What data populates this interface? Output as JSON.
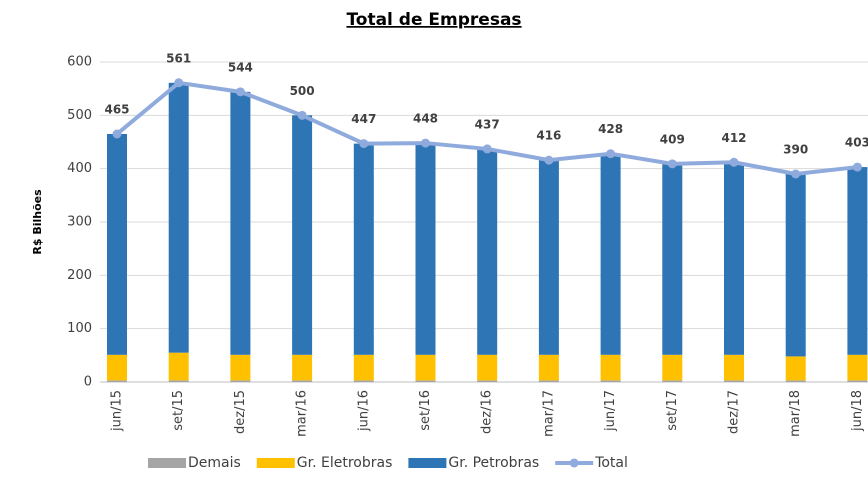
{
  "chart_data": {
    "type": "stacked-bar-line",
    "title": "Total de Empresas",
    "y_label": "R$ Bilhões",
    "categories": [
      "jun/15",
      "set/15",
      "dez/15",
      "mar/16",
      "jun/16",
      "set/16",
      "dez/16",
      "mar/17",
      "jun/17",
      "set/17",
      "dez/17",
      "mar/18",
      "jun/18"
    ],
    "series": [
      {
        "name": "Demais",
        "color": "#a5a5a5",
        "values": [
          3,
          3,
          3,
          3,
          3,
          3,
          3,
          3,
          3,
          3,
          3,
          3,
          3
        ]
      },
      {
        "name": "Gr. Eletrobras",
        "color": "#ffc000",
        "values": [
          48,
          52,
          48,
          48,
          48,
          48,
          48,
          48,
          48,
          48,
          48,
          45,
          48
        ]
      },
      {
        "name": "Gr. Petrobras",
        "color": "#2e75b6",
        "values": [
          414,
          506,
          493,
          449,
          396,
          397,
          386,
          365,
          377,
          358,
          361,
          342,
          352
        ]
      },
      {
        "name": "Total",
        "color": "#8faadc",
        "line": true,
        "values": [
          465,
          561,
          544,
          500,
          447,
          448,
          437,
          416,
          428,
          409,
          412,
          390,
          403
        ]
      }
    ],
    "ylim": [
      0,
      600
    ],
    "yticks": [
      0,
      100,
      200,
      300,
      400,
      500,
      600
    ],
    "grid": true,
    "legend": "bottom"
  }
}
